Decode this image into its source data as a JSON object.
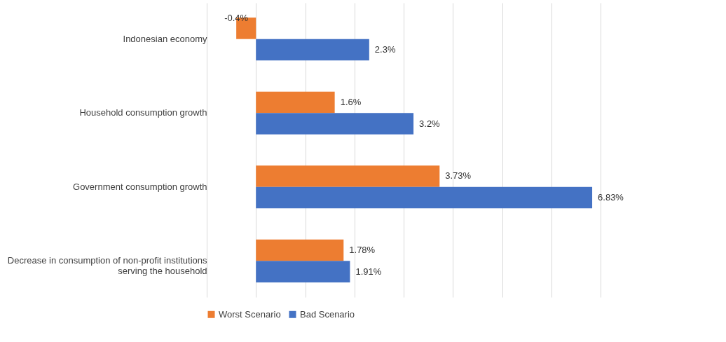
{
  "chart_data": {
    "type": "bar",
    "orientation": "horizontal",
    "categories": [
      "Indonesian economy",
      "Household consumption growth",
      "Government consumption growth",
      "Decrease in consumption of non-profit institutions serving the household"
    ],
    "series": [
      {
        "name": "Worst Scenario",
        "color": "#ed7d31",
        "values": [
          -0.4,
          1.6,
          3.73,
          1.78
        ],
        "value_labels": [
          "-0.4%",
          "1.6%",
          "3.73%",
          "1.78%"
        ]
      },
      {
        "name": "Bad Scenario",
        "color": "#4472c4",
        "values": [
          2.3,
          3.2,
          6.83,
          1.91
        ],
        "value_labels": [
          "2.3%",
          "3.2%",
          "6.83%",
          "1.91%"
        ]
      }
    ],
    "xlim": [
      -1,
      7
    ],
    "xticks": [
      {
        "value": -1,
        "label": null
      },
      {
        "value": 0,
        "label": null
      },
      {
        "value": 1,
        "label": null
      },
      {
        "value": 2,
        "label": null
      },
      {
        "value": 3,
        "label": null
      },
      {
        "value": 4,
        "label": null
      },
      {
        "value": 5,
        "label": null
      },
      {
        "value": 6,
        "label": null
      },
      {
        "value": 7,
        "label": null
      }
    ],
    "tick_labels": "y",
    "grid": "x",
    "legend": "bottom"
  }
}
